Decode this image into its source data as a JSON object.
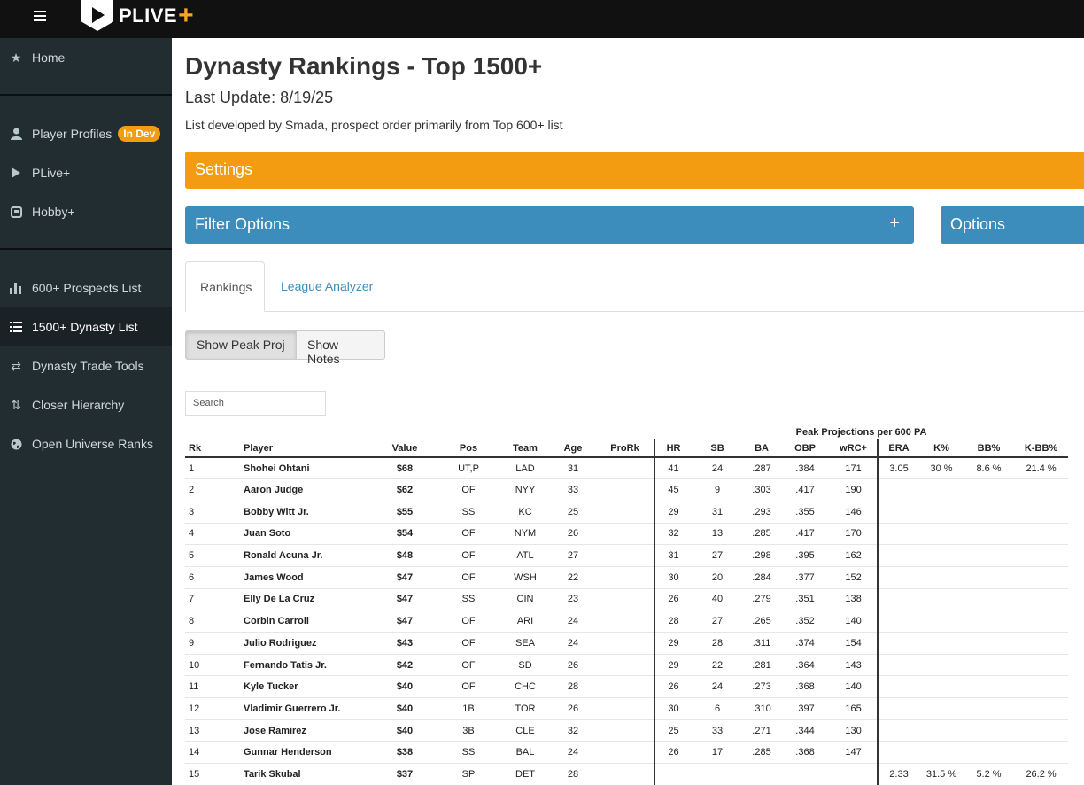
{
  "header": {
    "logo_text": "PLIVE",
    "logo_plus": "+"
  },
  "sidebar": {
    "items": [
      {
        "label": "Home",
        "icon": "star-icon"
      },
      {
        "label": "Player Profiles",
        "icon": "user-icon",
        "badge": "In Dev"
      },
      {
        "label": "PLive+",
        "icon": "play-icon"
      },
      {
        "label": "Hobby+",
        "icon": "card-icon"
      },
      {
        "label": "600+ Prospects List",
        "icon": "bar-chart-icon"
      },
      {
        "label": "1500+ Dynasty List",
        "icon": "list-icon",
        "active": true
      },
      {
        "label": "Dynasty Trade Tools",
        "icon": "exchange-icon"
      },
      {
        "label": "Closer Hierarchy",
        "icon": "sort-icon"
      },
      {
        "label": "Open Universe Ranks",
        "icon": "globe-icon"
      }
    ]
  },
  "page": {
    "title": "Dynasty Rankings - Top 1500+",
    "last_update": "Last Update: 8/19/25",
    "subtitle": "List developed by Smada, prospect order primarily from Top 600+ list"
  },
  "panels": {
    "settings": "Settings",
    "filter": "Filter Options",
    "filter_plus": "+",
    "options": "Options"
  },
  "tabs": {
    "rankings": "Rankings",
    "league": "League Analyzer"
  },
  "buttons": {
    "peak": "Show Peak Proj",
    "notes": "Show Notes"
  },
  "search": {
    "placeholder": "Search"
  },
  "table": {
    "group_header": "Peak Projections per 600 PA",
    "columns": [
      "Rk",
      "Player",
      "Value",
      "Pos",
      "Team",
      "Age",
      "ProRk",
      "HR",
      "SB",
      "BA",
      "OBP",
      "wRC+",
      "ERA",
      "K%",
      "BB%",
      "K-BB%"
    ],
    "rows": [
      [
        "1",
        "Shohei Ohtani",
        "$68",
        "UT,P",
        "LAD",
        "31",
        "",
        "41",
        "24",
        ".287",
        ".384",
        "171",
        "3.05",
        "30 %",
        "8.6 %",
        "21.4 %"
      ],
      [
        "2",
        "Aaron Judge",
        "$62",
        "OF",
        "NYY",
        "33",
        "",
        "45",
        "9",
        ".303",
        ".417",
        "190",
        "",
        "",
        "",
        ""
      ],
      [
        "3",
        "Bobby Witt Jr.",
        "$55",
        "SS",
        "KC",
        "25",
        "",
        "29",
        "31",
        ".293",
        ".355",
        "146",
        "",
        "",
        "",
        ""
      ],
      [
        "4",
        "Juan Soto",
        "$54",
        "OF",
        "NYM",
        "26",
        "",
        "32",
        "13",
        ".285",
        ".417",
        "170",
        "",
        "",
        "",
        ""
      ],
      [
        "5",
        "Ronald Acuna Jr.",
        "$48",
        "OF",
        "ATL",
        "27",
        "",
        "31",
        "27",
        ".298",
        ".395",
        "162",
        "",
        "",
        "",
        ""
      ],
      [
        "6",
        "James Wood",
        "$47",
        "OF",
        "WSH",
        "22",
        "",
        "30",
        "20",
        ".284",
        ".377",
        "152",
        "",
        "",
        "",
        ""
      ],
      [
        "7",
        "Elly De La Cruz",
        "$47",
        "SS",
        "CIN",
        "23",
        "",
        "26",
        "40",
        ".279",
        ".351",
        "138",
        "",
        "",
        "",
        ""
      ],
      [
        "8",
        "Corbin Carroll",
        "$47",
        "OF",
        "ARI",
        "24",
        "",
        "28",
        "27",
        ".265",
        ".352",
        "140",
        "",
        "",
        "",
        ""
      ],
      [
        "9",
        "Julio Rodriguez",
        "$43",
        "OF",
        "SEA",
        "24",
        "",
        "29",
        "28",
        ".311",
        ".374",
        "154",
        "",
        "",
        "",
        ""
      ],
      [
        "10",
        "Fernando Tatis Jr.",
        "$42",
        "OF",
        "SD",
        "26",
        "",
        "29",
        "22",
        ".281",
        ".364",
        "143",
        "",
        "",
        "",
        ""
      ],
      [
        "11",
        "Kyle Tucker",
        "$40",
        "OF",
        "CHC",
        "28",
        "",
        "26",
        "24",
        ".273",
        ".368",
        "140",
        "",
        "",
        "",
        ""
      ],
      [
        "12",
        "Vladimir Guerrero Jr.",
        "$40",
        "1B",
        "TOR",
        "26",
        "",
        "30",
        "6",
        ".310",
        ".397",
        "165",
        "",
        "",
        "",
        ""
      ],
      [
        "13",
        "Jose Ramirez",
        "$40",
        "3B",
        "CLE",
        "32",
        "",
        "25",
        "33",
        ".271",
        ".344",
        "130",
        "",
        "",
        "",
        ""
      ],
      [
        "14",
        "Gunnar Henderson",
        "$38",
        "SS",
        "BAL",
        "24",
        "",
        "26",
        "17",
        ".285",
        ".368",
        "147",
        "",
        "",
        "",
        ""
      ],
      [
        "15",
        "Tarik Skubal",
        "$37",
        "SP",
        "DET",
        "28",
        "",
        "",
        "",
        "",
        "",
        "",
        "2.33",
        "31.5 %",
        "5.2 %",
        "26.2 %"
      ]
    ]
  }
}
